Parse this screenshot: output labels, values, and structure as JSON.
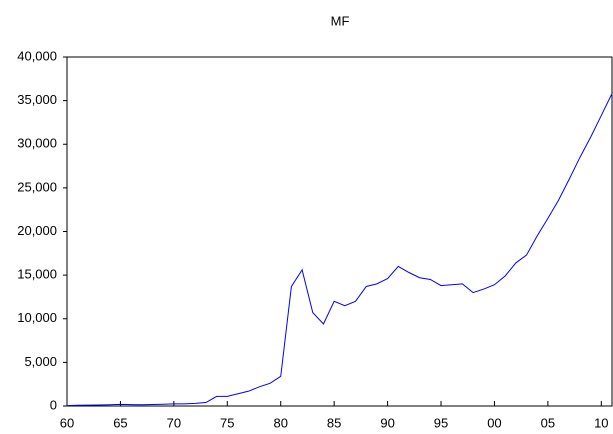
{
  "chart_data": {
    "type": "line",
    "title": "MF",
    "x": [
      1960,
      1961,
      1962,
      1963,
      1964,
      1965,
      1966,
      1967,
      1968,
      1969,
      1970,
      1971,
      1972,
      1973,
      1974,
      1975,
      1976,
      1977,
      1978,
      1979,
      1980,
      1981,
      1982,
      1983,
      1984,
      1985,
      1986,
      1987,
      1988,
      1989,
      1990,
      1991,
      1992,
      1993,
      1994,
      1995,
      1996,
      1997,
      1998,
      1999,
      2000,
      2001,
      2002,
      2003,
      2004,
      2005,
      2006,
      2007,
      2008,
      2009,
      2010,
      2011
    ],
    "series": [
      {
        "name": "MF",
        "color": "#0000ff",
        "values": [
          50,
          80,
          100,
          120,
          150,
          180,
          160,
          150,
          170,
          200,
          250,
          250,
          300,
          400,
          1100,
          1100,
          1400,
          1700,
          2200,
          2600,
          3400,
          13700,
          15600,
          10700,
          9400,
          12000,
          11500,
          12000,
          13700,
          14000,
          14600,
          16000,
          15300,
          14700,
          14500,
          13800,
          13900,
          14000,
          13000,
          13400,
          13900,
          14900,
          16400,
          17300,
          19500,
          21500,
          23600,
          26000,
          28500,
          30800,
          33300,
          35800
        ]
      }
    ],
    "xlim": [
      1960,
      2011
    ],
    "xticks": [
      {
        "value": 1960,
        "label": "60"
      },
      {
        "value": 1965,
        "label": "65"
      },
      {
        "value": 1970,
        "label": "70"
      },
      {
        "value": 1975,
        "label": "75"
      },
      {
        "value": 1980,
        "label": "80"
      },
      {
        "value": 1985,
        "label": "85"
      },
      {
        "value": 1990,
        "label": "90"
      },
      {
        "value": 1995,
        "label": "95"
      },
      {
        "value": 2000,
        "label": "00"
      },
      {
        "value": 2005,
        "label": "05"
      },
      {
        "value": 2010,
        "label": "10"
      }
    ],
    "ylim": [
      0,
      40000
    ],
    "yticks": [
      0,
      {
        "value": 5000,
        "label": "5,000"
      },
      {
        "value": 10000,
        "label": "10,000"
      },
      {
        "value": 15000,
        "label": "15,000"
      },
      {
        "value": 20000,
        "label": "20,000"
      },
      {
        "value": 25000,
        "label": "25,000"
      },
      {
        "value": 30000,
        "label": "30,000"
      },
      {
        "value": 35000,
        "label": "35,000"
      },
      {
        "value": 40000,
        "label": "40,000"
      }
    ],
    "grid": false
  }
}
